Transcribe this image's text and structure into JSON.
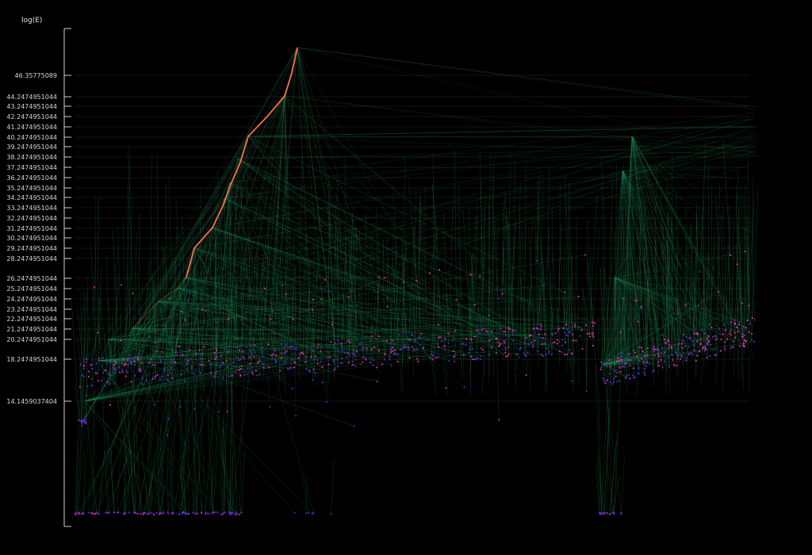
{
  "chart_data": {
    "type": "scatter",
    "title": "",
    "ylabel": "log(E)",
    "xlabel": "",
    "y_scale": "log(E)",
    "grid": true,
    "y_ticks": [
      "46.35775089",
      "44.2474951044",
      "43.2474951044",
      "42.2474951044",
      "41.2474951044",
      "40.2474951044",
      "39.2474951044",
      "38.2474951044",
      "37.2474951044",
      "36.2474951044",
      "35.2474951044",
      "34.2474951044",
      "33.2474951044",
      "32.2474951044",
      "31.2474951044",
      "30.2474951044",
      "29.2474951044",
      "28.2474951044",
      "26.2474951044",
      "25.2474951044",
      "24.2474951044",
      "23.2474951044",
      "22.2474951044",
      "21.2474951044",
      "20.2474951044",
      "18.2474951044",
      "14.1459037404"
    ],
    "series": [
      {
        "kind": "highlighted-path",
        "color": "#ff6e4a",
        "points": [
          [
            0.0,
            47.0
          ],
          [
            0.02,
            46.0
          ],
          [
            0.05,
            44.2
          ],
          [
            0.11,
            40.25
          ],
          [
            0.14,
            37.5
          ],
          [
            0.18,
            33.0
          ],
          [
            0.23,
            30.0
          ],
          [
            0.27,
            28.0
          ],
          [
            0.31,
            26.0
          ]
        ]
      },
      {
        "kind": "leaf-points",
        "colors": [
          "#ff2aa0",
          "#5a32d6"
        ]
      },
      {
        "kind": "tree-edges",
        "color": "#1f8a55"
      }
    ]
  },
  "colors": {
    "background": "#000000",
    "grid": "#2a2a2a",
    "axis": "#cfcfcf",
    "edge": "#1f8a55",
    "highlight": "#ff6e4a",
    "point_high": "#ff2aa0",
    "point_low": "#5a32d6"
  }
}
